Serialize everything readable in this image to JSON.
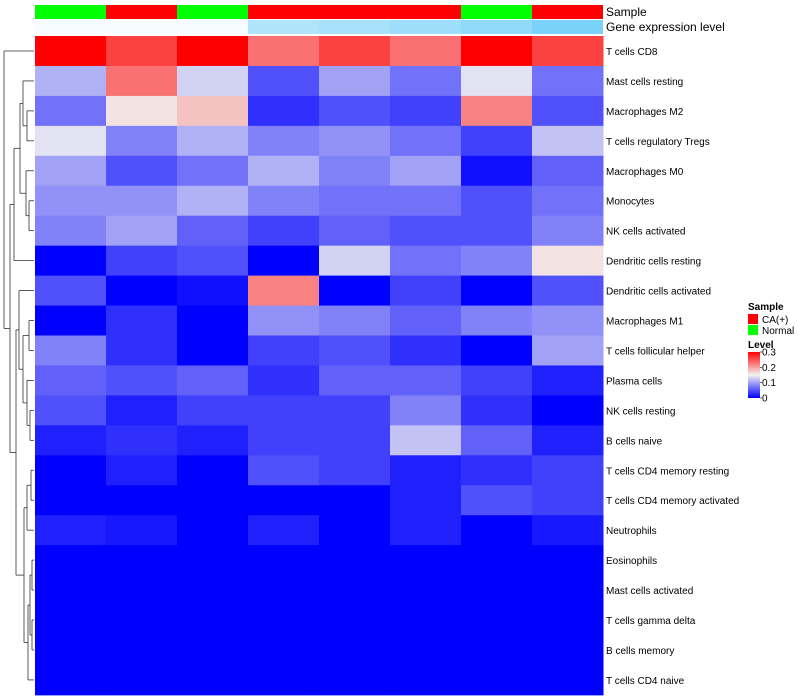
{
  "chart_data": {
    "type": "heatmap",
    "column_annotations": [
      {
        "name": "Sample",
        "values": [
          "Normal",
          "CA(+)",
          "Normal",
          "CA(+)",
          "CA(+)",
          "CA(+)",
          "Normal",
          "CA(+)"
        ]
      },
      {
        "name": "Gene expression level",
        "values": [
          0.05,
          0.05,
          0.05,
          0.45,
          0.5,
          0.55,
          0.62,
          0.75
        ]
      }
    ],
    "rows": [
      {
        "label": "T cells CD8",
        "values": [
          0.3,
          0.26,
          0.3,
          0.23,
          0.26,
          0.23,
          0.3,
          0.26
        ]
      },
      {
        "label": "Mast cells resting",
        "values": [
          0.11,
          0.23,
          0.13,
          0.05,
          0.1,
          0.07,
          0.14,
          0.07
        ]
      },
      {
        "label": "Macrophages M2",
        "values": [
          0.07,
          0.16,
          0.18,
          0.03,
          0.05,
          0.04,
          0.22,
          0.05
        ]
      },
      {
        "label": "T cells regulatory  Tregs",
        "values": [
          0.14,
          0.08,
          0.11,
          0.08,
          0.09,
          0.07,
          0.04,
          0.12
        ]
      },
      {
        "label": "Macrophages M0",
        "values": [
          0.1,
          0.05,
          0.07,
          0.11,
          0.08,
          0.1,
          0.01,
          0.06
        ]
      },
      {
        "label": "Monocytes",
        "values": [
          0.09,
          0.09,
          0.11,
          0.08,
          0.07,
          0.07,
          0.05,
          0.07
        ]
      },
      {
        "label": "NK cells activated",
        "values": [
          0.08,
          0.1,
          0.06,
          0.04,
          0.06,
          0.05,
          0.05,
          0.08
        ]
      },
      {
        "label": "Dendritic cells resting",
        "values": [
          0.0,
          0.04,
          0.05,
          0.0,
          0.13,
          0.07,
          0.08,
          0.16
        ]
      },
      {
        "label": "Dendritic cells activated",
        "values": [
          0.05,
          0.0,
          0.01,
          0.22,
          0.0,
          0.04,
          0.0,
          0.05
        ]
      },
      {
        "label": "Macrophages M1",
        "values": [
          0.0,
          0.03,
          0.0,
          0.09,
          0.08,
          0.06,
          0.08,
          0.09
        ]
      },
      {
        "label": "T cells follicular helper",
        "values": [
          0.08,
          0.03,
          0.0,
          0.04,
          0.05,
          0.03,
          0.0,
          0.1
        ]
      },
      {
        "label": "Plasma cells",
        "values": [
          0.06,
          0.05,
          0.06,
          0.03,
          0.06,
          0.06,
          0.04,
          0.02
        ]
      },
      {
        "label": "NK cells resting",
        "values": [
          0.05,
          0.02,
          0.04,
          0.04,
          0.04,
          0.08,
          0.03,
          0.0
        ]
      },
      {
        "label": "B cells naive",
        "values": [
          0.02,
          0.03,
          0.02,
          0.04,
          0.04,
          0.12,
          0.06,
          0.02
        ]
      },
      {
        "label": "T cells CD4 memory resting",
        "values": [
          0.0,
          0.02,
          0.0,
          0.05,
          0.04,
          0.02,
          0.03,
          0.04
        ]
      },
      {
        "label": "T cells CD4 memory activated",
        "values": [
          0.0,
          0.0,
          0.0,
          0.0,
          0.0,
          0.02,
          0.05,
          0.04
        ]
      },
      {
        "label": "Neutrophils",
        "values": [
          0.02,
          0.015,
          0.0,
          0.02,
          0.0,
          0.02,
          0.0,
          0.015
        ]
      },
      {
        "label": "Eosinophils",
        "values": [
          0.0,
          0.0,
          0.0,
          0.0,
          0.0,
          0.0,
          0.0,
          0.0
        ]
      },
      {
        "label": "Mast cells activated",
        "values": [
          0.0,
          0.0,
          0.0,
          0.0,
          0.0,
          0.0,
          0.0,
          0.0
        ]
      },
      {
        "label": "T cells gamma delta",
        "values": [
          0.0,
          0.0,
          0.0,
          0.0,
          0.0,
          0.0,
          0.0,
          0.0
        ]
      },
      {
        "label": "B cells memory",
        "values": [
          0.0,
          0.0,
          0.0,
          0.0,
          0.0,
          0.0,
          0.0,
          0.0
        ]
      },
      {
        "label": "T cells CD4 naive",
        "values": [
          0.0,
          0.0,
          0.0,
          0.0,
          0.0,
          0.0,
          0.0,
          0.0
        ]
      }
    ],
    "color_scale": {
      "min": 0,
      "mid": 0.15,
      "max": 0.3,
      "low": "#0000ff",
      "midcolor": "#f2f2f2",
      "high": "#ff0000"
    },
    "annotation_scale": {
      "low": "#ffffff",
      "high": "#4fc3f7"
    },
    "legend": {
      "sample_title": "Sample",
      "sample_entries": [
        {
          "label": "CA(+)",
          "color": "#ff0000"
        },
        {
          "label": "Normal",
          "color": "#00ff00"
        }
      ],
      "level_title": "Level",
      "level_ticks": [
        "0.3",
        "0.2",
        "0.1",
        "0"
      ],
      "placement": "right"
    },
    "dendrogram": "left (row clustering)"
  }
}
